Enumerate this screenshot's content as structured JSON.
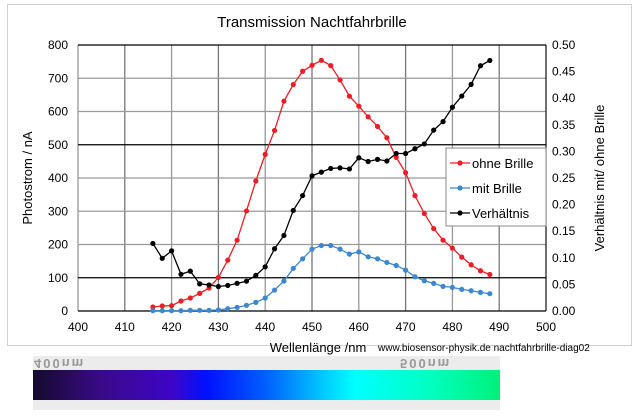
{
  "chart_data": {
    "type": "line",
    "title": "Transmission Nachtfahrbrille",
    "xlabel": "Wellenlänge /nm",
    "ylabel": "Photostrom / nA",
    "y2label": "Verhältnis mit/ ohne Brille",
    "xlim": [
      400,
      500
    ],
    "ylim": [
      0,
      800
    ],
    "y2lim": [
      0,
      0.5
    ],
    "xticks": [
      "400",
      "410",
      "420",
      "430",
      "440",
      "450",
      "460",
      "470",
      "480",
      "490",
      "500"
    ],
    "yticks": [
      "0",
      "100",
      "200",
      "300",
      "400",
      "500",
      "600",
      "700",
      "800"
    ],
    "y2ticks": [
      "0.00",
      "0.05",
      "0.10",
      "0.15",
      "0.20",
      "0.25",
      "0.30",
      "0.35",
      "0.40",
      "0.45",
      "0.50"
    ],
    "grid": true,
    "legend_position": "right",
    "x": [
      416,
      418,
      420,
      422,
      424,
      426,
      428,
      430,
      432,
      434,
      436,
      438,
      440,
      442,
      444,
      446,
      448,
      450,
      452,
      454,
      456,
      458,
      460,
      462,
      464,
      466,
      468,
      470,
      472,
      474,
      476,
      478,
      480,
      482,
      484,
      486,
      488
    ],
    "series": [
      {
        "name": "ohne Brille",
        "axis": "left",
        "color": "#ee1c25",
        "values": [
          12,
          15,
          16,
          30,
          39,
          53,
          69,
          101,
          153,
          213,
          301,
          391,
          471,
          543,
          631,
          681,
          721,
          739,
          754,
          738,
          695,
          646,
          616,
          584,
          555,
          521,
          462,
          416,
          347,
          293,
          248,
          213,
          189,
          162,
          139,
          121,
          110
        ]
      },
      {
        "name": "mit Brille",
        "axis": "left",
        "color": "#3b87d0",
        "values": [
          1,
          1,
          1,
          1,
          2,
          2,
          2,
          3,
          7,
          11,
          17,
          26,
          39,
          63,
          90,
          128,
          157,
          186,
          197,
          197,
          186,
          171,
          178,
          163,
          157,
          146,
          137,
          123,
          103,
          91,
          83,
          74,
          71,
          65,
          61,
          56,
          52
        ]
      },
      {
        "name": "Verhältnis",
        "axis": "right",
        "color": "#000000",
        "values": [
          0.127,
          0.099,
          0.113,
          0.069,
          0.075,
          0.051,
          0.049,
          0.046,
          0.048,
          0.052,
          0.056,
          0.067,
          0.083,
          0.117,
          0.142,
          0.189,
          0.217,
          0.254,
          0.261,
          0.268,
          0.269,
          0.267,
          0.288,
          0.281,
          0.285,
          0.282,
          0.296,
          0.296,
          0.305,
          0.314,
          0.34,
          0.356,
          0.383,
          0.404,
          0.426,
          0.461,
          0.471
        ]
      }
    ],
    "credit": "www.biosensor-physik.de  nachtfahrbrille-diag02"
  },
  "spectrum": {
    "label_left": "400nm",
    "label_right": "500nm"
  }
}
